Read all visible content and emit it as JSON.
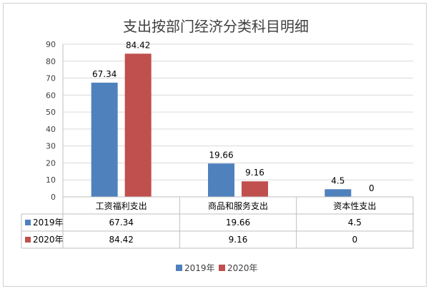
{
  "chart_data": {
    "type": "bar",
    "title": "支出按部门经济分类科目明细",
    "categories": [
      "工资福利支出",
      "商品和服务支出",
      "资本性支出"
    ],
    "series": [
      {
        "name": "2019年",
        "color": "#4f81bd",
        "values": [
          67.34,
          19.66,
          4.5
        ],
        "labels": [
          "67.34",
          "19.66",
          "4.5"
        ]
      },
      {
        "name": "2020年",
        "color": "#c0504d",
        "values": [
          84.42,
          9.16,
          0
        ],
        "labels": [
          "84.42",
          "9.16",
          "0"
        ]
      }
    ],
    "ylim": [
      0,
      90
    ],
    "yticks": [
      0,
      10,
      20,
      30,
      40,
      50,
      60,
      70,
      80,
      90
    ],
    "grid": true,
    "data_table": true,
    "legend_position": "bottom"
  }
}
